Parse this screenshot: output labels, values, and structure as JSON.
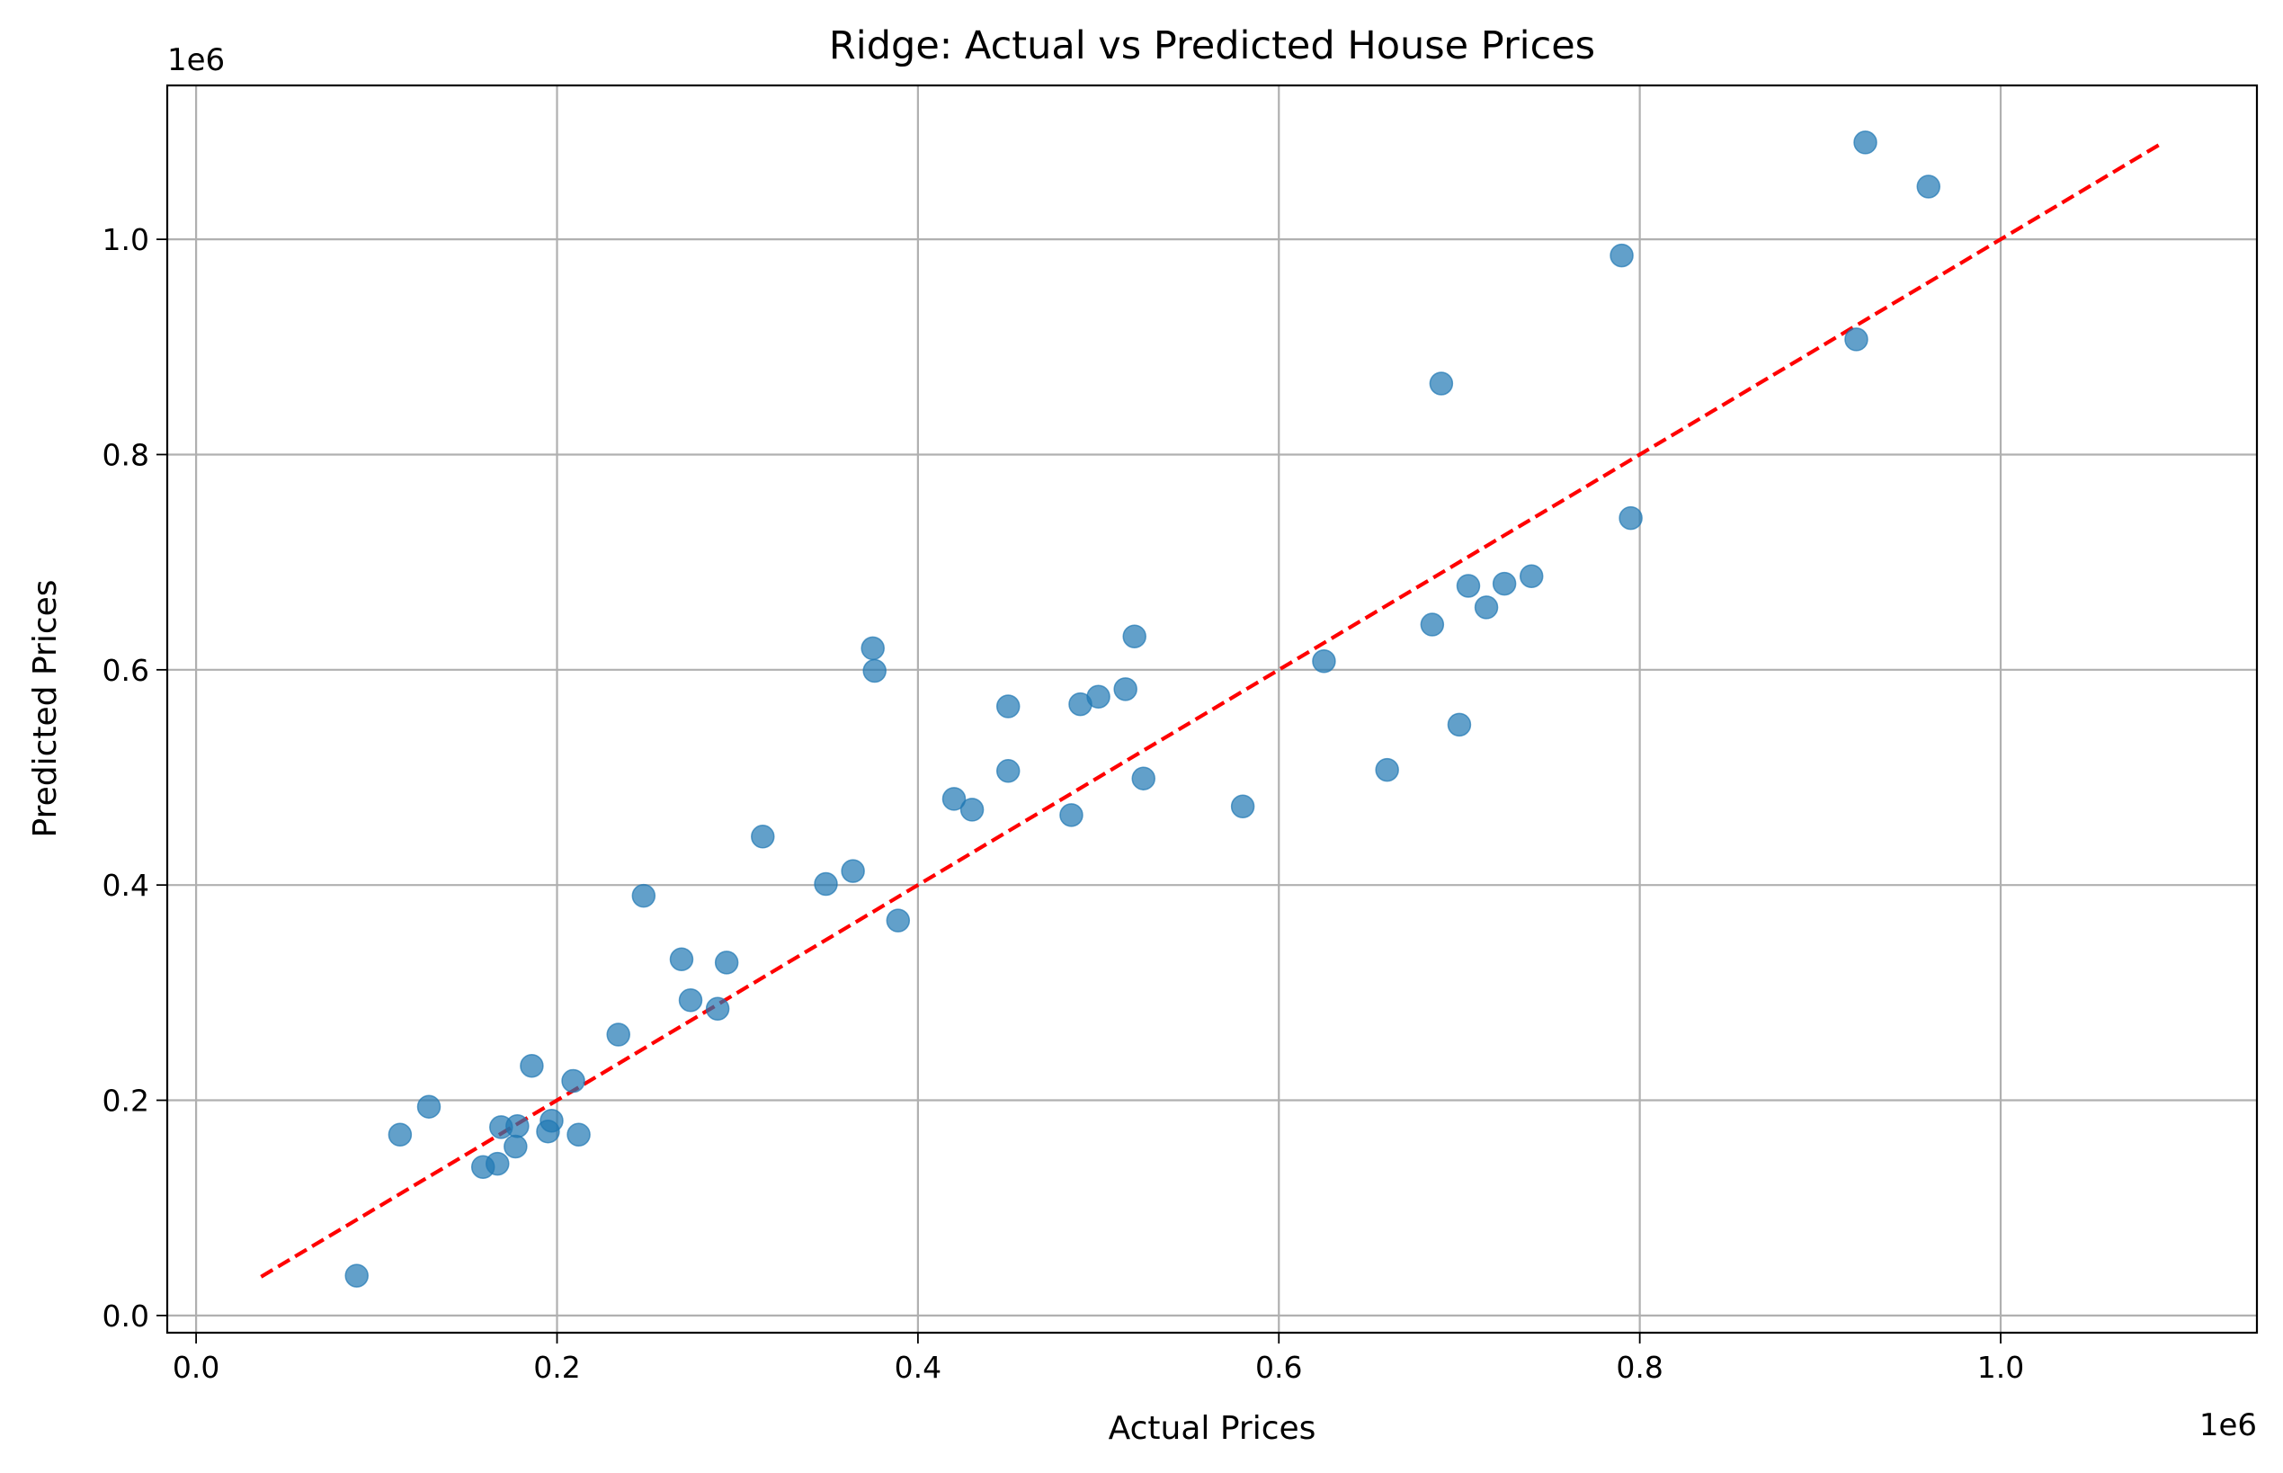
{
  "chart_data": {
    "type": "scatter",
    "title": "Ridge: Actual vs Predicted House Prices",
    "xlabel": "Actual Prices",
    "ylabel": "Predicted Prices",
    "x_offset_text": "1e6",
    "y_offset_text": "1e6",
    "xlim": [
      -0.016,
      1.142
    ],
    "ylim": [
      -0.016,
      1.143
    ],
    "xticks": [
      0.0,
      0.2,
      0.4,
      0.6,
      0.8,
      1.0
    ],
    "xtick_labels": [
      "0.0",
      "0.2",
      "0.4",
      "0.6",
      "0.8",
      "1.0"
    ],
    "yticks": [
      0.0,
      0.2,
      0.4,
      0.6,
      0.8,
      1.0
    ],
    "ytick_labels": [
      "0.0",
      "0.2",
      "0.4",
      "0.6",
      "0.8",
      "1.0"
    ],
    "grid": true,
    "colors": {
      "points": "#1f77b4",
      "reference_line": "#ff0000"
    },
    "reference_line": {
      "style": "dashed",
      "x": [
        0.036,
        1.09
      ],
      "y": [
        0.036,
        1.09
      ]
    },
    "series": [
      {
        "x": [
          0.089,
          0.113,
          0.129,
          0.159,
          0.167,
          0.169,
          0.177,
          0.178,
          0.186,
          0.195,
          0.197,
          0.209,
          0.212,
          0.234,
          0.248,
          0.269,
          0.274,
          0.289,
          0.294,
          0.314,
          0.349,
          0.364,
          0.375,
          0.376,
          0.389,
          0.42,
          0.43,
          0.45,
          0.45,
          0.485,
          0.49,
          0.5,
          0.515,
          0.52,
          0.525,
          0.58,
          0.625,
          0.66,
          0.685,
          0.69,
          0.7,
          0.705,
          0.715,
          0.725,
          0.74,
          0.79,
          0.795,
          0.92,
          0.925,
          0.96
        ],
        "y": [
          0.037,
          0.168,
          0.194,
          0.138,
          0.141,
          0.175,
          0.157,
          0.176,
          0.232,
          0.171,
          0.181,
          0.218,
          0.168,
          0.261,
          0.39,
          0.331,
          0.293,
          0.285,
          0.328,
          0.445,
          0.401,
          0.413,
          0.62,
          0.599,
          0.367,
          0.48,
          0.47,
          0.566,
          0.506,
          0.465,
          0.568,
          0.575,
          0.582,
          0.631,
          0.499,
          0.473,
          0.608,
          0.507,
          0.642,
          0.866,
          0.549,
          0.678,
          0.658,
          0.68,
          0.687,
          0.985,
          0.741,
          0.907,
          1.09,
          1.049
        ]
      }
    ]
  }
}
